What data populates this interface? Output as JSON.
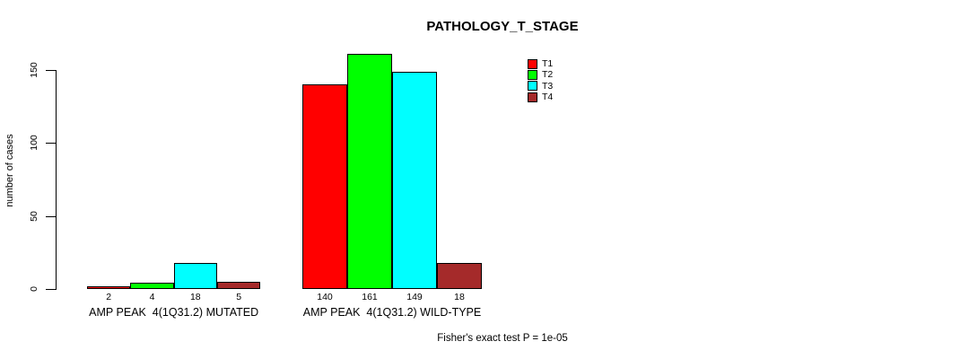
{
  "chart_data": {
    "type": "bar",
    "title": "PATHOLOGY_T_STAGE",
    "ylabel": "number of cases",
    "xlabel": "",
    "yticks": [
      0,
      50,
      100,
      150
    ],
    "ylim": [
      0,
      165
    ],
    "grid": false,
    "categories": [
      "AMP PEAK  4(1Q31.2) MUTATED",
      "AMP PEAK  4(1Q31.2) WILD-TYPE"
    ],
    "series": [
      {
        "name": "T1",
        "color": "#FF0000",
        "values": [
          2,
          140
        ]
      },
      {
        "name": "T2",
        "color": "#00FF00",
        "values": [
          4,
          161
        ]
      },
      {
        "name": "T3",
        "color": "#00FFFF",
        "values": [
          18,
          149
        ]
      },
      {
        "name": "T4",
        "color": "#A52A2A",
        "values": [
          5,
          18
        ]
      }
    ],
    "bar_value_labels": [
      [
        2,
        4,
        18,
        5
      ],
      [
        140,
        161,
        149,
        18
      ]
    ],
    "legend": {
      "entries": [
        "T1",
        "T2",
        "T3",
        "T4"
      ],
      "position": "top-right"
    },
    "footer": "Fisher's exact test P = 1e-05"
  }
}
